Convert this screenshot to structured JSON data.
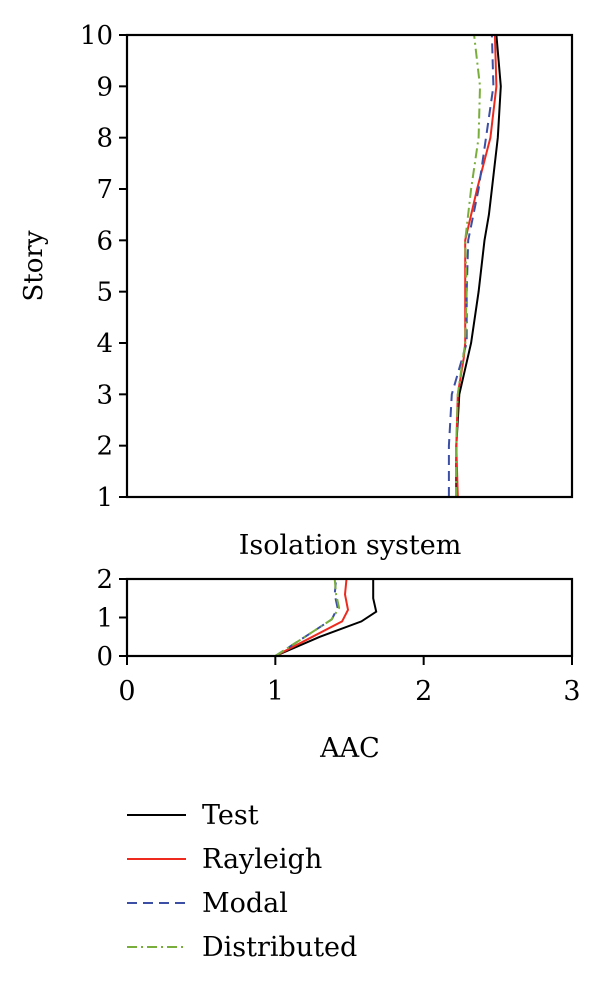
{
  "chart_data": [
    {
      "type": "line",
      "panel": "upper",
      "ylabel": "Story",
      "xlim": [
        0,
        3
      ],
      "ylim": [
        1,
        10
      ],
      "yticks": [
        "1",
        "2",
        "3",
        "4",
        "5",
        "6",
        "7",
        "8",
        "9",
        "10"
      ],
      "grid": false,
      "series": [
        {
          "name": "Test",
          "color": "#000000",
          "dash": "solid",
          "points": [
            [
              2.22,
              1
            ],
            [
              2.22,
              2
            ],
            [
              2.24,
              3
            ],
            [
              2.28,
              3.5
            ],
            [
              2.32,
              4
            ],
            [
              2.37,
              5
            ],
            [
              2.41,
              6
            ],
            [
              2.44,
              6.5
            ],
            [
              2.46,
              7
            ],
            [
              2.5,
              8
            ],
            [
              2.52,
              9
            ],
            [
              2.49,
              10
            ]
          ]
        },
        {
          "name": "Rayleigh",
          "color": "#ee2a1f",
          "dash": "solid",
          "points": [
            [
              2.23,
              1
            ],
            [
              2.22,
              2
            ],
            [
              2.23,
              3
            ],
            [
              2.27,
              3.7
            ],
            [
              2.28,
              4
            ],
            [
              2.28,
              5
            ],
            [
              2.28,
              6
            ],
            [
              2.36,
              7
            ],
            [
              2.45,
              8
            ],
            [
              2.49,
              9
            ],
            [
              2.48,
              10
            ]
          ]
        },
        {
          "name": "Modal",
          "color": "#3b4fa5",
          "dash": "dash",
          "points": [
            [
              2.17,
              1
            ],
            [
              2.17,
              2
            ],
            [
              2.19,
              3
            ],
            [
              2.28,
              3.9
            ],
            [
              2.29,
              4
            ],
            [
              2.29,
              5
            ],
            [
              2.3,
              6
            ],
            [
              2.37,
              7
            ],
            [
              2.42,
              8
            ],
            [
              2.47,
              9
            ],
            [
              2.46,
              10
            ]
          ]
        },
        {
          "name": "Distributed",
          "color": "#7aae3c",
          "dash": "dashdot",
          "points": [
            [
              2.22,
              1
            ],
            [
              2.22,
              2
            ],
            [
              2.23,
              3
            ],
            [
              2.26,
              3.6
            ],
            [
              2.28,
              4
            ],
            [
              2.29,
              5
            ],
            [
              2.28,
              6
            ],
            [
              2.32,
              7
            ],
            [
              2.37,
              8
            ],
            [
              2.38,
              9
            ],
            [
              2.34,
              10
            ]
          ]
        }
      ]
    },
    {
      "type": "line",
      "panel": "lower",
      "title": "Isolation system",
      "xlabel": "AAC",
      "xlim": [
        0,
        3
      ],
      "ylim": [
        0,
        2
      ],
      "xticks": [
        "0",
        "1",
        "2",
        "3"
      ],
      "yticks": [
        "0",
        "1",
        "2"
      ],
      "grid": false,
      "legend": "below",
      "series": [
        {
          "name": "Test",
          "color": "#000000",
          "dash": "solid",
          "points": [
            [
              1.0,
              0
            ],
            [
              1.3,
              0.5
            ],
            [
              1.58,
              0.9
            ],
            [
              1.68,
              1.15
            ],
            [
              1.66,
              1.5
            ],
            [
              1.66,
              2
            ]
          ]
        },
        {
          "name": "Rayleigh",
          "color": "#ee2a1f",
          "dash": "solid",
          "points": [
            [
              1.0,
              0
            ],
            [
              1.25,
              0.5
            ],
            [
              1.45,
              0.9
            ],
            [
              1.49,
              1.2
            ],
            [
              1.47,
              1.6
            ],
            [
              1.48,
              2
            ]
          ]
        },
        {
          "name": "Modal",
          "color": "#3b4fa5",
          "dash": "dash",
          "points": [
            [
              1.0,
              0
            ],
            [
              1.2,
              0.5
            ],
            [
              1.38,
              0.95
            ],
            [
              1.42,
              1.25
            ],
            [
              1.4,
              1.6
            ],
            [
              1.41,
              2
            ]
          ]
        },
        {
          "name": "Distributed",
          "color": "#7aae3c",
          "dash": "dashdot",
          "points": [
            [
              1.0,
              0
            ],
            [
              1.2,
              0.5
            ],
            [
              1.38,
              0.95
            ],
            [
              1.43,
              1.25
            ],
            [
              1.41,
              1.6
            ],
            [
              1.4,
              2
            ]
          ]
        }
      ]
    }
  ]
}
